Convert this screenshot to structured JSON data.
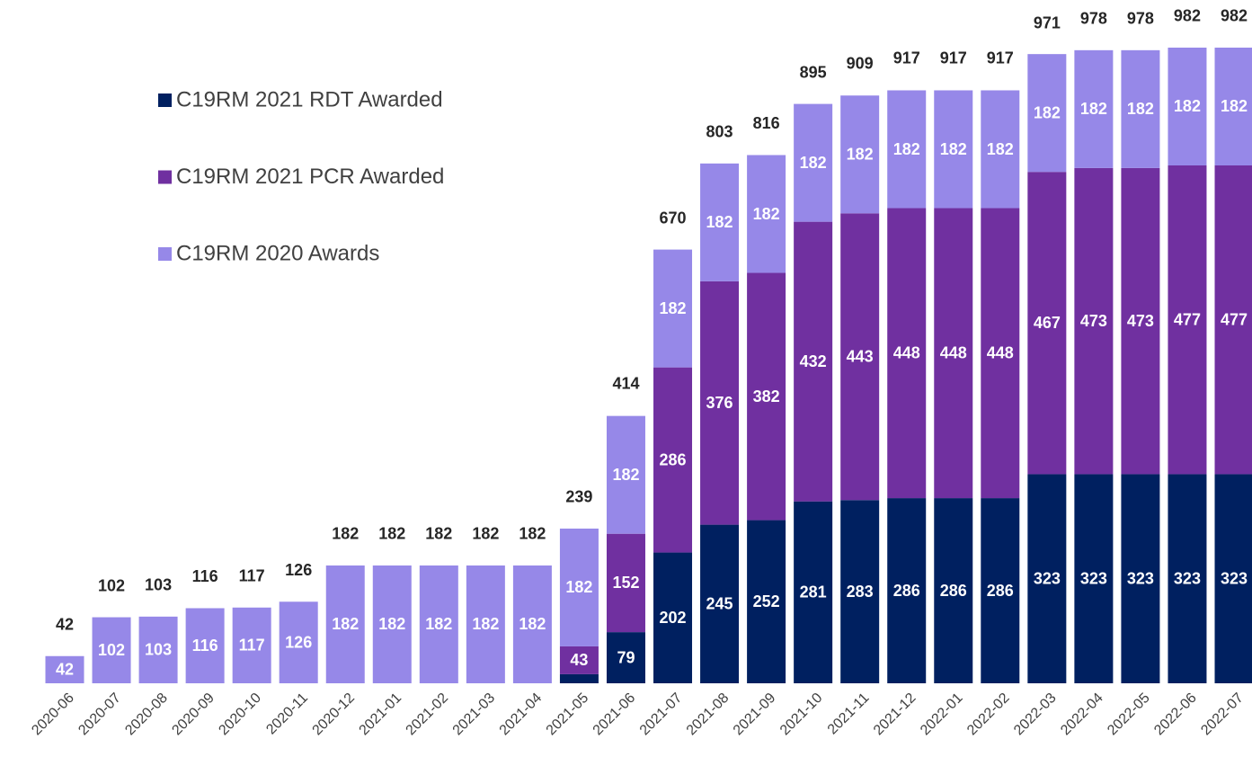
{
  "chart_data": {
    "type": "stacked_bar",
    "categories": [
      "2020-06",
      "2020-07",
      "2020-08",
      "2020-09",
      "2020-10",
      "2020-11",
      "2020-12",
      "2021-01",
      "2021-02",
      "2021-03",
      "2021-04",
      "2021-05",
      "2021-06",
      "2021-07",
      "2021-08",
      "2021-09",
      "2021-10",
      "2021-11",
      "2021-12",
      "2022-01",
      "2022-02",
      "2022-03",
      "2022-04",
      "2022-05",
      "2022-06",
      "2022-07"
    ],
    "series": [
      {
        "name": "C19RM 2021 RDT Awarded",
        "color": "#002060",
        "values": [
          null,
          null,
          null,
          null,
          null,
          null,
          null,
          null,
          null,
          null,
          null,
          14,
          79,
          202,
          245,
          252,
          281,
          283,
          286,
          286,
          286,
          323,
          323,
          323,
          323,
          323
        ]
      },
      {
        "name": "C19RM 2021 PCR Awarded",
        "color": "#7030a0",
        "values": [
          null,
          null,
          null,
          null,
          null,
          null,
          null,
          null,
          null,
          null,
          null,
          43,
          152,
          286,
          376,
          382,
          432,
          443,
          448,
          448,
          448,
          467,
          473,
          473,
          477,
          477
        ]
      },
      {
        "name": "C19RM 2020 Awards",
        "color": "#9688e8",
        "values": [
          42,
          102,
          103,
          116,
          117,
          126,
          182,
          182,
          182,
          182,
          182,
          182,
          182,
          182,
          182,
          182,
          182,
          182,
          182,
          182,
          182,
          182,
          182,
          182,
          182,
          182
        ]
      }
    ],
    "totals": [
      42,
      102,
      103,
      116,
      117,
      126,
      182,
      182,
      182,
      182,
      182,
      239,
      414,
      670,
      803,
      816,
      895,
      909,
      917,
      917,
      917,
      971,
      978,
      978,
      982,
      982
    ],
    "ylim": [
      0,
      1000
    ]
  }
}
